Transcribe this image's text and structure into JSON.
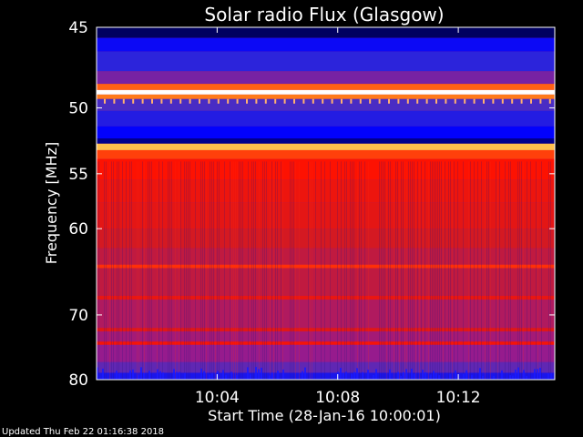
{
  "chart_data": {
    "type": "heatmap",
    "title": "Solar radio Flux (Glasgow)",
    "xlabel": "Start Time (28-Jan-16 10:00:01)",
    "ylabel": "Frequency [MHz]",
    "x_ticks": [
      {
        "label": "10:04",
        "minutes": 4
      },
      {
        "label": "10:08",
        "minutes": 8
      },
      {
        "label": "10:12",
        "minutes": 12
      }
    ],
    "y_ticks": [
      45,
      50,
      55,
      60,
      70,
      80
    ],
    "xlim_minutes": [
      0,
      15.2
    ],
    "ylim_mhz": [
      45,
      80
    ],
    "y_scale": "reciprocal",
    "colormap": [
      "#000040",
      "#0000ff",
      "#3a2fcf",
      "#9a1a8a",
      "#cc1a28",
      "#ff1200",
      "#ff7a1a",
      "#ffd25a",
      "#ffffff"
    ],
    "frequency_bands": [
      {
        "from": 45.0,
        "to": 45.6,
        "level": 0.02
      },
      {
        "from": 45.6,
        "to": 46.4,
        "level": 0.15
      },
      {
        "from": 46.4,
        "to": 47.6,
        "level": 0.22
      },
      {
        "from": 47.6,
        "to": 48.4,
        "level": 0.33
      },
      {
        "from": 48.4,
        "to": 48.8,
        "level": 0.72
      },
      {
        "from": 48.8,
        "to": 49.1,
        "level": 1.0
      },
      {
        "from": 49.1,
        "to": 49.4,
        "level": 0.75
      },
      {
        "from": 49.4,
        "to": 50.2,
        "level": 0.27
      },
      {
        "from": 50.2,
        "to": 51.3,
        "level": 0.2
      },
      {
        "from": 51.3,
        "to": 52.2,
        "level": 0.13
      },
      {
        "from": 52.2,
        "to": 52.6,
        "level": 0.05
      },
      {
        "from": 52.6,
        "to": 53.1,
        "level": 0.85
      },
      {
        "from": 53.1,
        "to": 53.8,
        "level": 0.68
      },
      {
        "from": 53.8,
        "to": 55.5,
        "level": 0.62
      },
      {
        "from": 55.5,
        "to": 57.5,
        "level": 0.58
      },
      {
        "from": 57.5,
        "to": 60.0,
        "level": 0.56
      },
      {
        "from": 60.0,
        "to": 62.0,
        "level": 0.52
      },
      {
        "from": 62.0,
        "to": 63.8,
        "level": 0.47
      },
      {
        "from": 63.8,
        "to": 64.2,
        "level": 0.66
      },
      {
        "from": 64.2,
        "to": 67.5,
        "level": 0.47
      },
      {
        "from": 67.5,
        "to": 68.0,
        "level": 0.57
      },
      {
        "from": 68.0,
        "to": 71.8,
        "level": 0.43
      },
      {
        "from": 71.8,
        "to": 72.3,
        "level": 0.55
      },
      {
        "from": 72.3,
        "to": 73.8,
        "level": 0.4
      },
      {
        "from": 73.8,
        "to": 74.3,
        "level": 0.6
      },
      {
        "from": 74.3,
        "to": 77.0,
        "level": 0.37
      },
      {
        "from": 77.0,
        "to": 78.8,
        "level": 0.3
      },
      {
        "from": 78.8,
        "to": 80.0,
        "level": 0.18
      }
    ]
  },
  "footer": {
    "updated": "Updated Thu Feb 22 01:16:38 2018"
  }
}
